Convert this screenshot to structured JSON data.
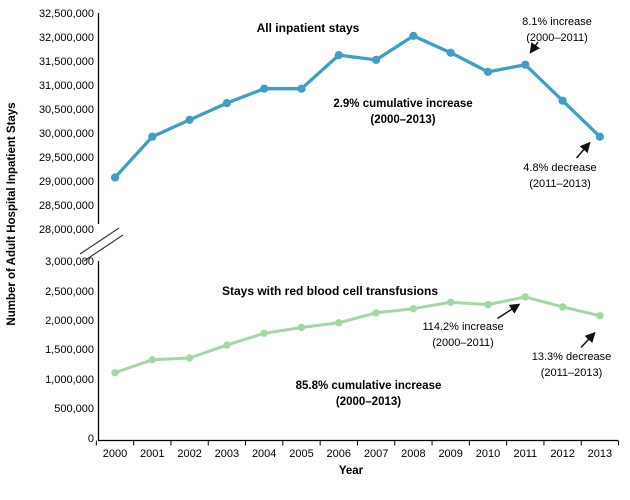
{
  "chart_data": {
    "type": "line",
    "xlabel": "Year",
    "ylabel": "Number of Adult Hospital Inpatient Stays",
    "categories": [
      "2000",
      "2001",
      "2002",
      "2003",
      "2004",
      "2005",
      "2006",
      "2007",
      "2008",
      "2009",
      "2010",
      "2011",
      "2012",
      "2013"
    ],
    "axis_break": true,
    "grid": false,
    "panels": [
      {
        "title": "All inpatient stays",
        "color": "#3D9FC6",
        "ylim": [
          28000000,
          32500000
        ],
        "ytick_labels": [
          "32,500,000",
          "32,000,000",
          "31,500,000",
          "31,000,000",
          "30,500,000",
          "30,000,000",
          "29,500,000",
          "29,000,000",
          "28,500,000",
          "28,000,000"
        ],
        "values": [
          29100000,
          29950000,
          30300000,
          30650000,
          30950000,
          30950000,
          31650000,
          31550000,
          32050000,
          31700000,
          31300000,
          31450000,
          30700000,
          29950000
        ],
        "cumulative_note": {
          "line1": "2.9% cumulative increase",
          "line2": "(2000–2013)"
        },
        "increase_note": {
          "line1": "8.1% increase",
          "line2": "(2000–2011)"
        },
        "decrease_note": {
          "line1": "4.8% decrease",
          "line2": "(2011–2013)"
        }
      },
      {
        "title": "Stays with red blood cell transfusions",
        "color": "#A3D7A3",
        "ylim": [
          0,
          3000000
        ],
        "ytick_labels": [
          "3,000,000",
          "2,500,000",
          "2,000,000",
          "1,500,000",
          "1,000,000",
          "500,000",
          "0"
        ],
        "values": [
          1130000,
          1350000,
          1380000,
          1600000,
          1800000,
          1900000,
          1980000,
          2150000,
          2220000,
          2330000,
          2290000,
          2420000,
          2250000,
          2100000
        ],
        "cumulative_note": {
          "line1": "85.8% cumulative increase",
          "line2": "(2000–2013)"
        },
        "increase_note": {
          "line1": "114.2% increase",
          "line2": "(2000–2011)"
        },
        "decrease_note": {
          "line1": "13.3% decrease",
          "line2": "(2011–2013)"
        }
      }
    ]
  }
}
